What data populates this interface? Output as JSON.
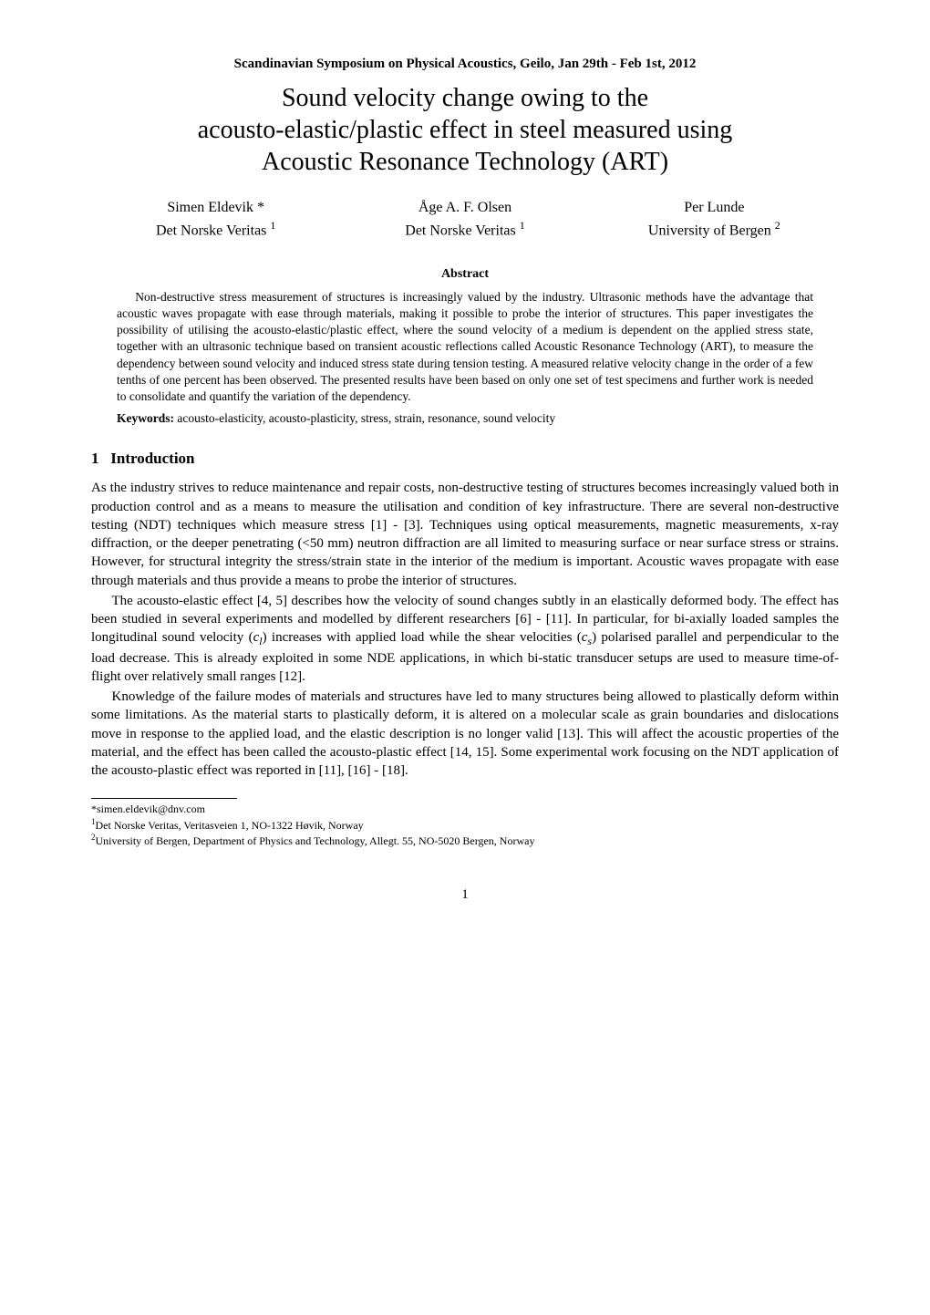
{
  "conference": "Scandinavian Symposium on Physical Acoustics, Geilo, Jan 29th - Feb 1st, 2012",
  "title_line1": "Sound velocity change owing to the",
  "title_line2": "acousto-elastic/plastic effect in steel measured using",
  "title_line3": "Acoustic Resonance Technology (ART)",
  "authors": [
    {
      "name": "Simen Eldevik *",
      "affil": "Det Norske Veritas ",
      "sup": "1"
    },
    {
      "name": "Åge A. F. Olsen",
      "affil": "Det Norske Veritas ",
      "sup": "1"
    },
    {
      "name": "Per Lunde",
      "affil": "University of Bergen ",
      "sup": "2"
    }
  ],
  "abstract_heading": "Abstract",
  "abstract_body": "Non-destructive stress measurement of structures is increasingly valued by the industry. Ultrasonic methods have the advantage that acoustic waves propagate with ease through materials, making it possible to probe the interior of structures. This paper investigates the possibility of utilising the acousto-elastic/plastic effect, where the sound velocity of a medium is dependent on the applied stress state, together with an ultrasonic technique based on transient acoustic reflections called Acoustic Resonance Technology (ART), to measure the dependency between sound velocity and induced stress state during tension testing. A measured relative velocity change in the order of a few tenths of one percent has been observed. The presented results have been based on only one set of test specimens and further work is needed to consolidate and quantify the variation of the dependency.",
  "keywords_label": "Keywords:",
  "keywords_text": " acousto-elasticity, acousto-plasticity, stress, strain, resonance, sound velocity",
  "section1_number": "1",
  "section1_title": "Introduction",
  "para1": "As the industry strives to reduce maintenance and repair costs, non-destructive testing of structures becomes increasingly valued both in production control and as a means to measure the utilisation and condition of key infrastructure. There are several non-destructive testing (NDT) techniques which measure stress [1] - [3]. Techniques using optical measurements, magnetic measurements, x-ray diffraction, or the deeper penetrating (<50 mm) neutron diffraction are all limited to measuring surface or near surface stress or strains. However, for structural integrity the stress/strain state in the interior of the medium is important. Acoustic waves propagate with ease through materials and thus provide a means to probe the interior of structures.",
  "para2_a": "The acousto-elastic effect [4, 5] describes how the velocity of sound changes subtly in an elastically deformed body. The effect has been studied in several experiments and modelled by different researchers [6] - [11]. In particular, for bi-axially loaded samples the longitudinal sound velocity (",
  "para2_cl": "c",
  "para2_l": "l",
  "para2_b": ") increases with applied load while the shear velocities (",
  "para2_cs": "c",
  "para2_s": "s",
  "para2_c": ") polarised parallel and perpendicular to the load decrease. This is already exploited in some NDE applications, in which bi-static transducer setups are used to measure time-of-flight over relatively small ranges [12].",
  "para3": "Knowledge of the failure modes of materials and structures have led to many structures being allowed to plastically deform within some limitations. As the material starts to plastically deform, it is altered on a molecular scale as grain boundaries and dislocations move in response to the applied load, and the elastic description is no longer valid [13]. This will affect the acoustic properties of the material, and the effect has been called the acousto-plastic effect [14, 15]. Some experimental work focusing on the NDT application of the acousto-plastic effect was reported in [11], [16] - [18].",
  "footnotes": {
    "f0": "*simen.eldevik@dnv.com",
    "f1_sup": "1",
    "f1": "Det Norske Veritas, Veritasveien 1, NO-1322 Høvik, Norway",
    "f2_sup": "2",
    "f2": "University of Bergen, Department of Physics and Technology, Allegt. 55, NO-5020 Bergen, Norway"
  },
  "page_number": "1"
}
